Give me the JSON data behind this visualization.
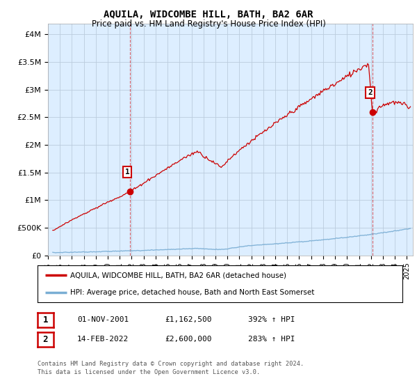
{
  "title": "AQUILA, WIDCOMBE HILL, BATH, BA2 6AR",
  "subtitle": "Price paid vs. HM Land Registry's House Price Index (HPI)",
  "ylabel_ticks": [
    "£0",
    "£500K",
    "£1M",
    "£1.5M",
    "£2M",
    "£2.5M",
    "£3M",
    "£3.5M",
    "£4M"
  ],
  "ytick_values": [
    0,
    500000,
    1000000,
    1500000,
    2000000,
    2500000,
    3000000,
    3500000,
    4000000
  ],
  "ylim": [
    0,
    4200000
  ],
  "xlim_min": 1995.3,
  "xlim_max": 2025.5,
  "xtick_years": [
    1995,
    1996,
    1997,
    1998,
    1999,
    2000,
    2001,
    2002,
    2003,
    2004,
    2005,
    2006,
    2007,
    2008,
    2009,
    2010,
    2011,
    2012,
    2013,
    2014,
    2015,
    2016,
    2017,
    2018,
    2019,
    2020,
    2021,
    2022,
    2023,
    2024,
    2025
  ],
  "property_color": "#cc0000",
  "hpi_color": "#7aaed4",
  "plot_bg_color": "#ddeeff",
  "vline_color": "#cc0000",
  "vline_alpha": 0.6,
  "marker1_year": 2001.83,
  "marker1_value": 1162500,
  "marker2_year": 2022.12,
  "marker2_value": 2600000,
  "annotation1_label": "1",
  "annotation2_label": "2",
  "legend_property": "AQUILA, WIDCOMBE HILL, BATH, BA2 6AR (detached house)",
  "legend_hpi": "HPI: Average price, detached house, Bath and North East Somerset",
  "table_row1": [
    "1",
    "01-NOV-2001",
    "£1,162,500",
    "392% ↑ HPI"
  ],
  "table_row2": [
    "2",
    "14-FEB-2022",
    "£2,600,000",
    "283% ↑ HPI"
  ],
  "footnote": "Contains HM Land Registry data © Crown copyright and database right 2024.\nThis data is licensed under the Open Government Licence v3.0.",
  "bg_color": "#ffffff",
  "grid_color": "#bbccdd"
}
